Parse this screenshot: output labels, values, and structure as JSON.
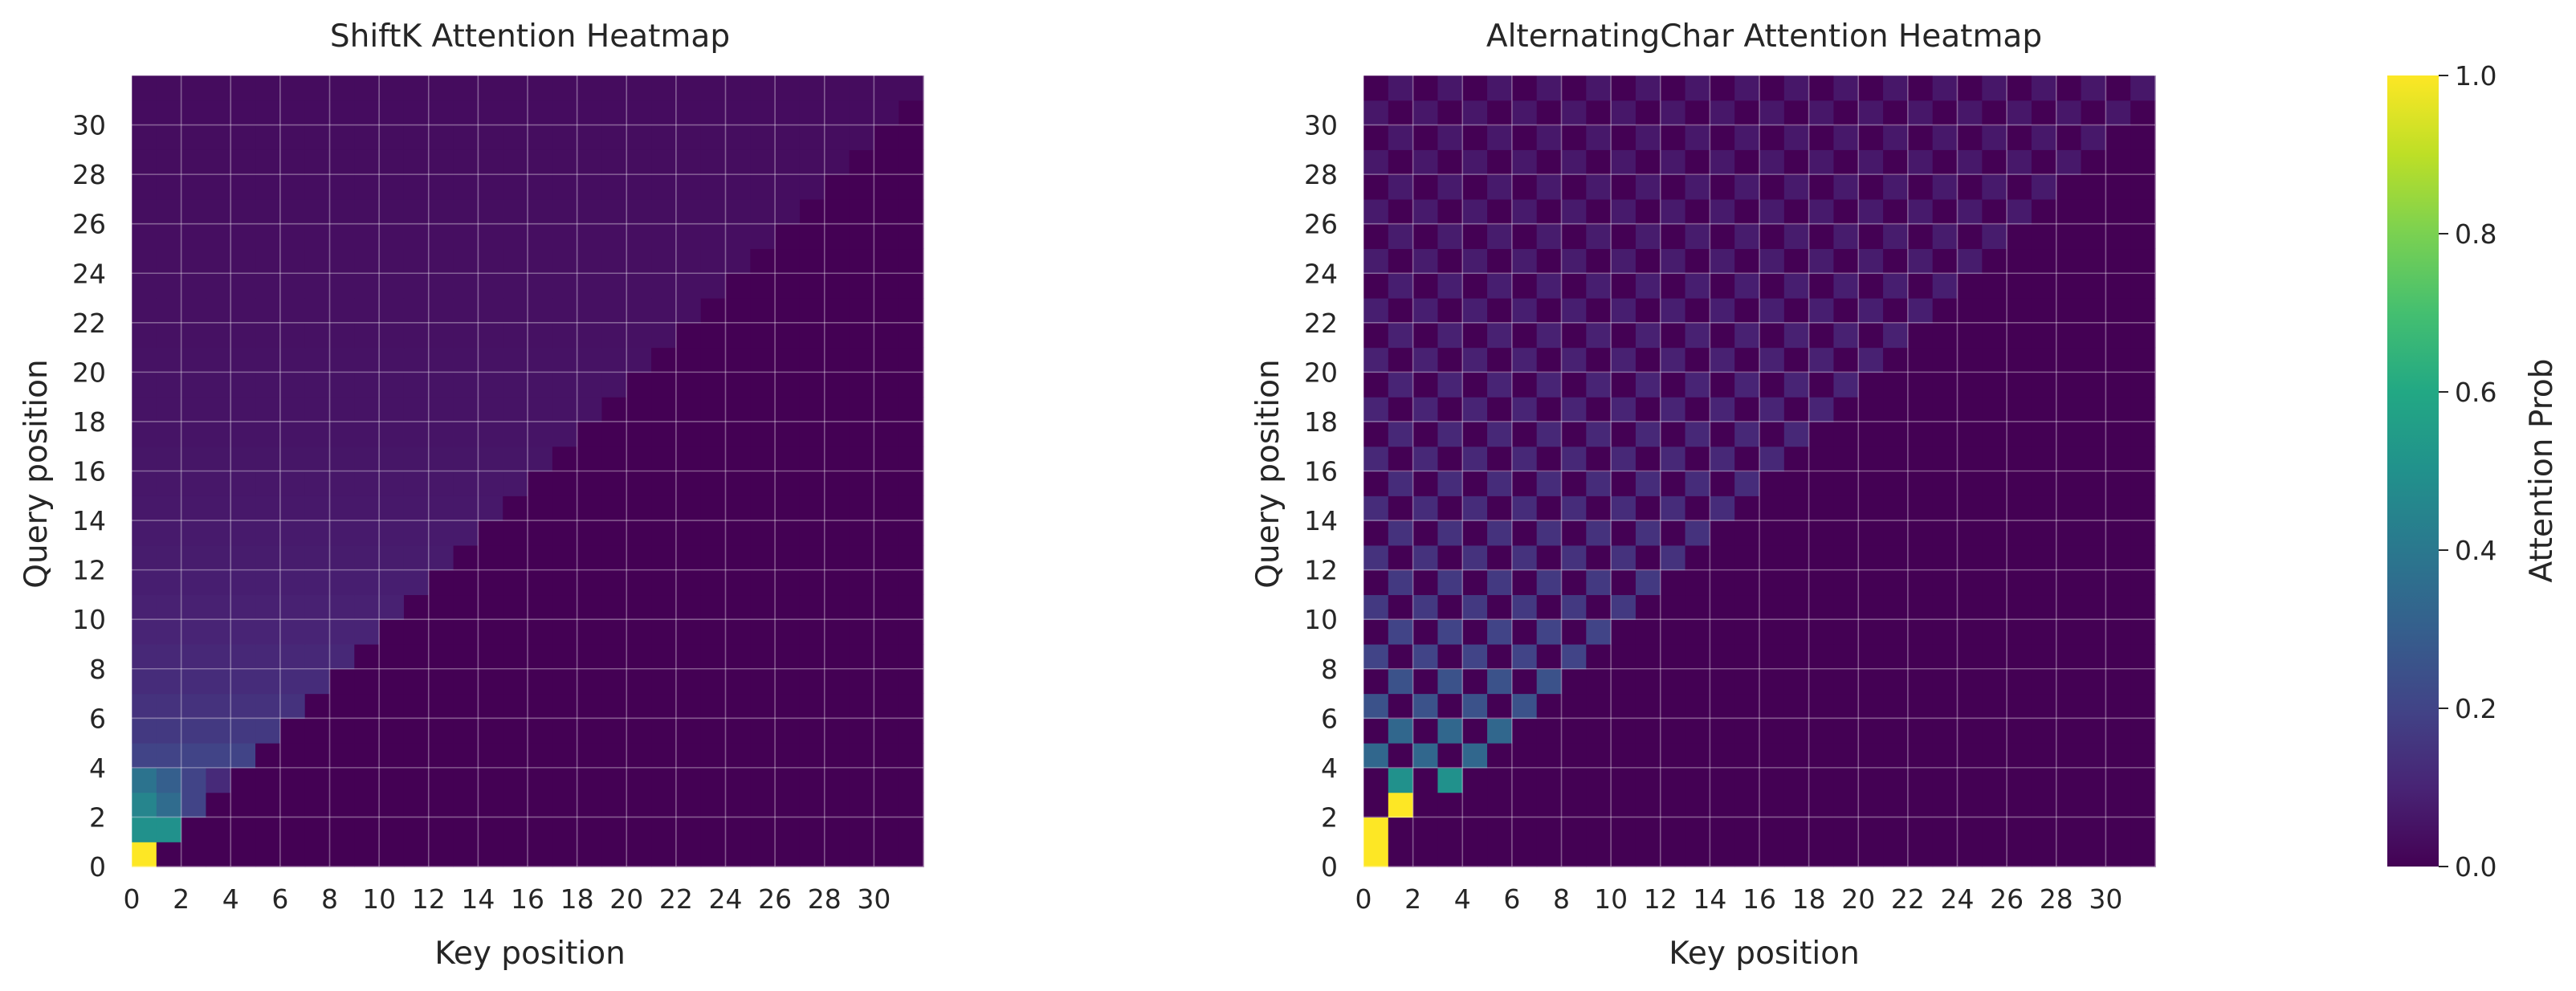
{
  "chart_data": [
    {
      "type": "heatmap",
      "title": "ShiftK Attention Heatmap",
      "xlabel": "Key position",
      "ylabel": "Query position",
      "size": 32,
      "xticks": [
        "0",
        "2",
        "4",
        "6",
        "8",
        "10",
        "12",
        "14",
        "16",
        "18",
        "20",
        "22",
        "24",
        "26",
        "28",
        "30"
      ],
      "yticks": [
        "0",
        "2",
        "4",
        "6",
        "8",
        "10",
        "12",
        "14",
        "16",
        "18",
        "20",
        "22",
        "24",
        "26",
        "28",
        "30"
      ],
      "pattern": "causal-uniform",
      "row0": [
        1.0
      ],
      "row1": [
        0.5,
        0.5
      ],
      "row2": [
        0.45,
        0.35,
        0.2
      ],
      "row3": [
        0.38,
        0.3,
        0.2,
        0.12
      ]
    },
    {
      "type": "heatmap",
      "title": "AlternatingChar Attention Heatmap",
      "xlabel": "Key position",
      "ylabel": "Query position",
      "size": 32,
      "xticks": [
        "0",
        "2",
        "4",
        "6",
        "8",
        "10",
        "12",
        "14",
        "16",
        "18",
        "20",
        "22",
        "24",
        "26",
        "28",
        "30"
      ],
      "yticks": [
        "0",
        "2",
        "4",
        "6",
        "8",
        "10",
        "12",
        "14",
        "16",
        "18",
        "20",
        "22",
        "24",
        "26",
        "28",
        "30"
      ],
      "pattern": "alternating-parity",
      "row0": [
        1.0
      ],
      "row1": [
        1.0,
        0.0
      ],
      "row2": [
        0.0,
        1.0,
        0.0
      ]
    }
  ],
  "colorbar": {
    "label": "Attention Prob",
    "ticks": [
      "0.0",
      "0.2",
      "0.4",
      "0.6",
      "0.8",
      "1.0"
    ],
    "min": 0.0,
    "max": 1.0,
    "colormap": "viridis",
    "gridline_color": "#ffffff"
  }
}
